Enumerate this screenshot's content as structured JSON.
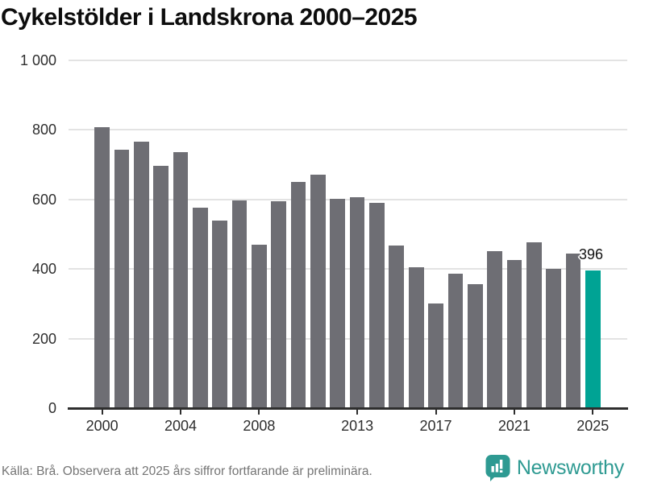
{
  "title": "Cykelstölder i Landskrona 2000–2025",
  "footer": {
    "source": "Källa: Brå. Observera att 2025 års siffror fortfarande är preliminära.",
    "brand": "Newsworthy"
  },
  "colors": {
    "bar": "#6e6e74",
    "highlight": "#00a394",
    "gridline": "#e3e3e3",
    "axis": "#2e2e2e",
    "title_text": "#0d0d0d",
    "footer_text": "#757575",
    "logo_teal": "#2e9a92"
  },
  "chart_data": {
    "type": "bar",
    "title": "Cykelstölder i Landskrona 2000–2025",
    "x": [
      2000,
      2001,
      2002,
      2003,
      2004,
      2005,
      2006,
      2007,
      2008,
      2009,
      2010,
      2011,
      2012,
      2013,
      2014,
      2015,
      2016,
      2017,
      2018,
      2019,
      2020,
      2021,
      2022,
      2023,
      2024,
      2025
    ],
    "values": [
      807,
      744,
      767,
      697,
      736,
      577,
      540,
      597,
      470,
      596,
      651,
      671,
      601,
      606,
      591,
      468,
      406,
      301,
      387,
      356,
      452,
      425,
      476,
      401,
      444,
      396
    ],
    "highlight_year": 2025,
    "annotation": {
      "year": 2025,
      "text": "396"
    },
    "ylim": [
      0,
      1000
    ],
    "y_ticks": [
      0,
      200,
      400,
      600,
      800,
      1000
    ],
    "y_tick_labels": [
      "0",
      "200",
      "400",
      "600",
      "800",
      "1 000"
    ],
    "x_tick_years": [
      2000,
      2004,
      2008,
      2013,
      2017,
      2021,
      2025
    ],
    "grid": true,
    "legend": "none",
    "bar_color": "#6e6e74",
    "highlight_color": "#00a394"
  }
}
